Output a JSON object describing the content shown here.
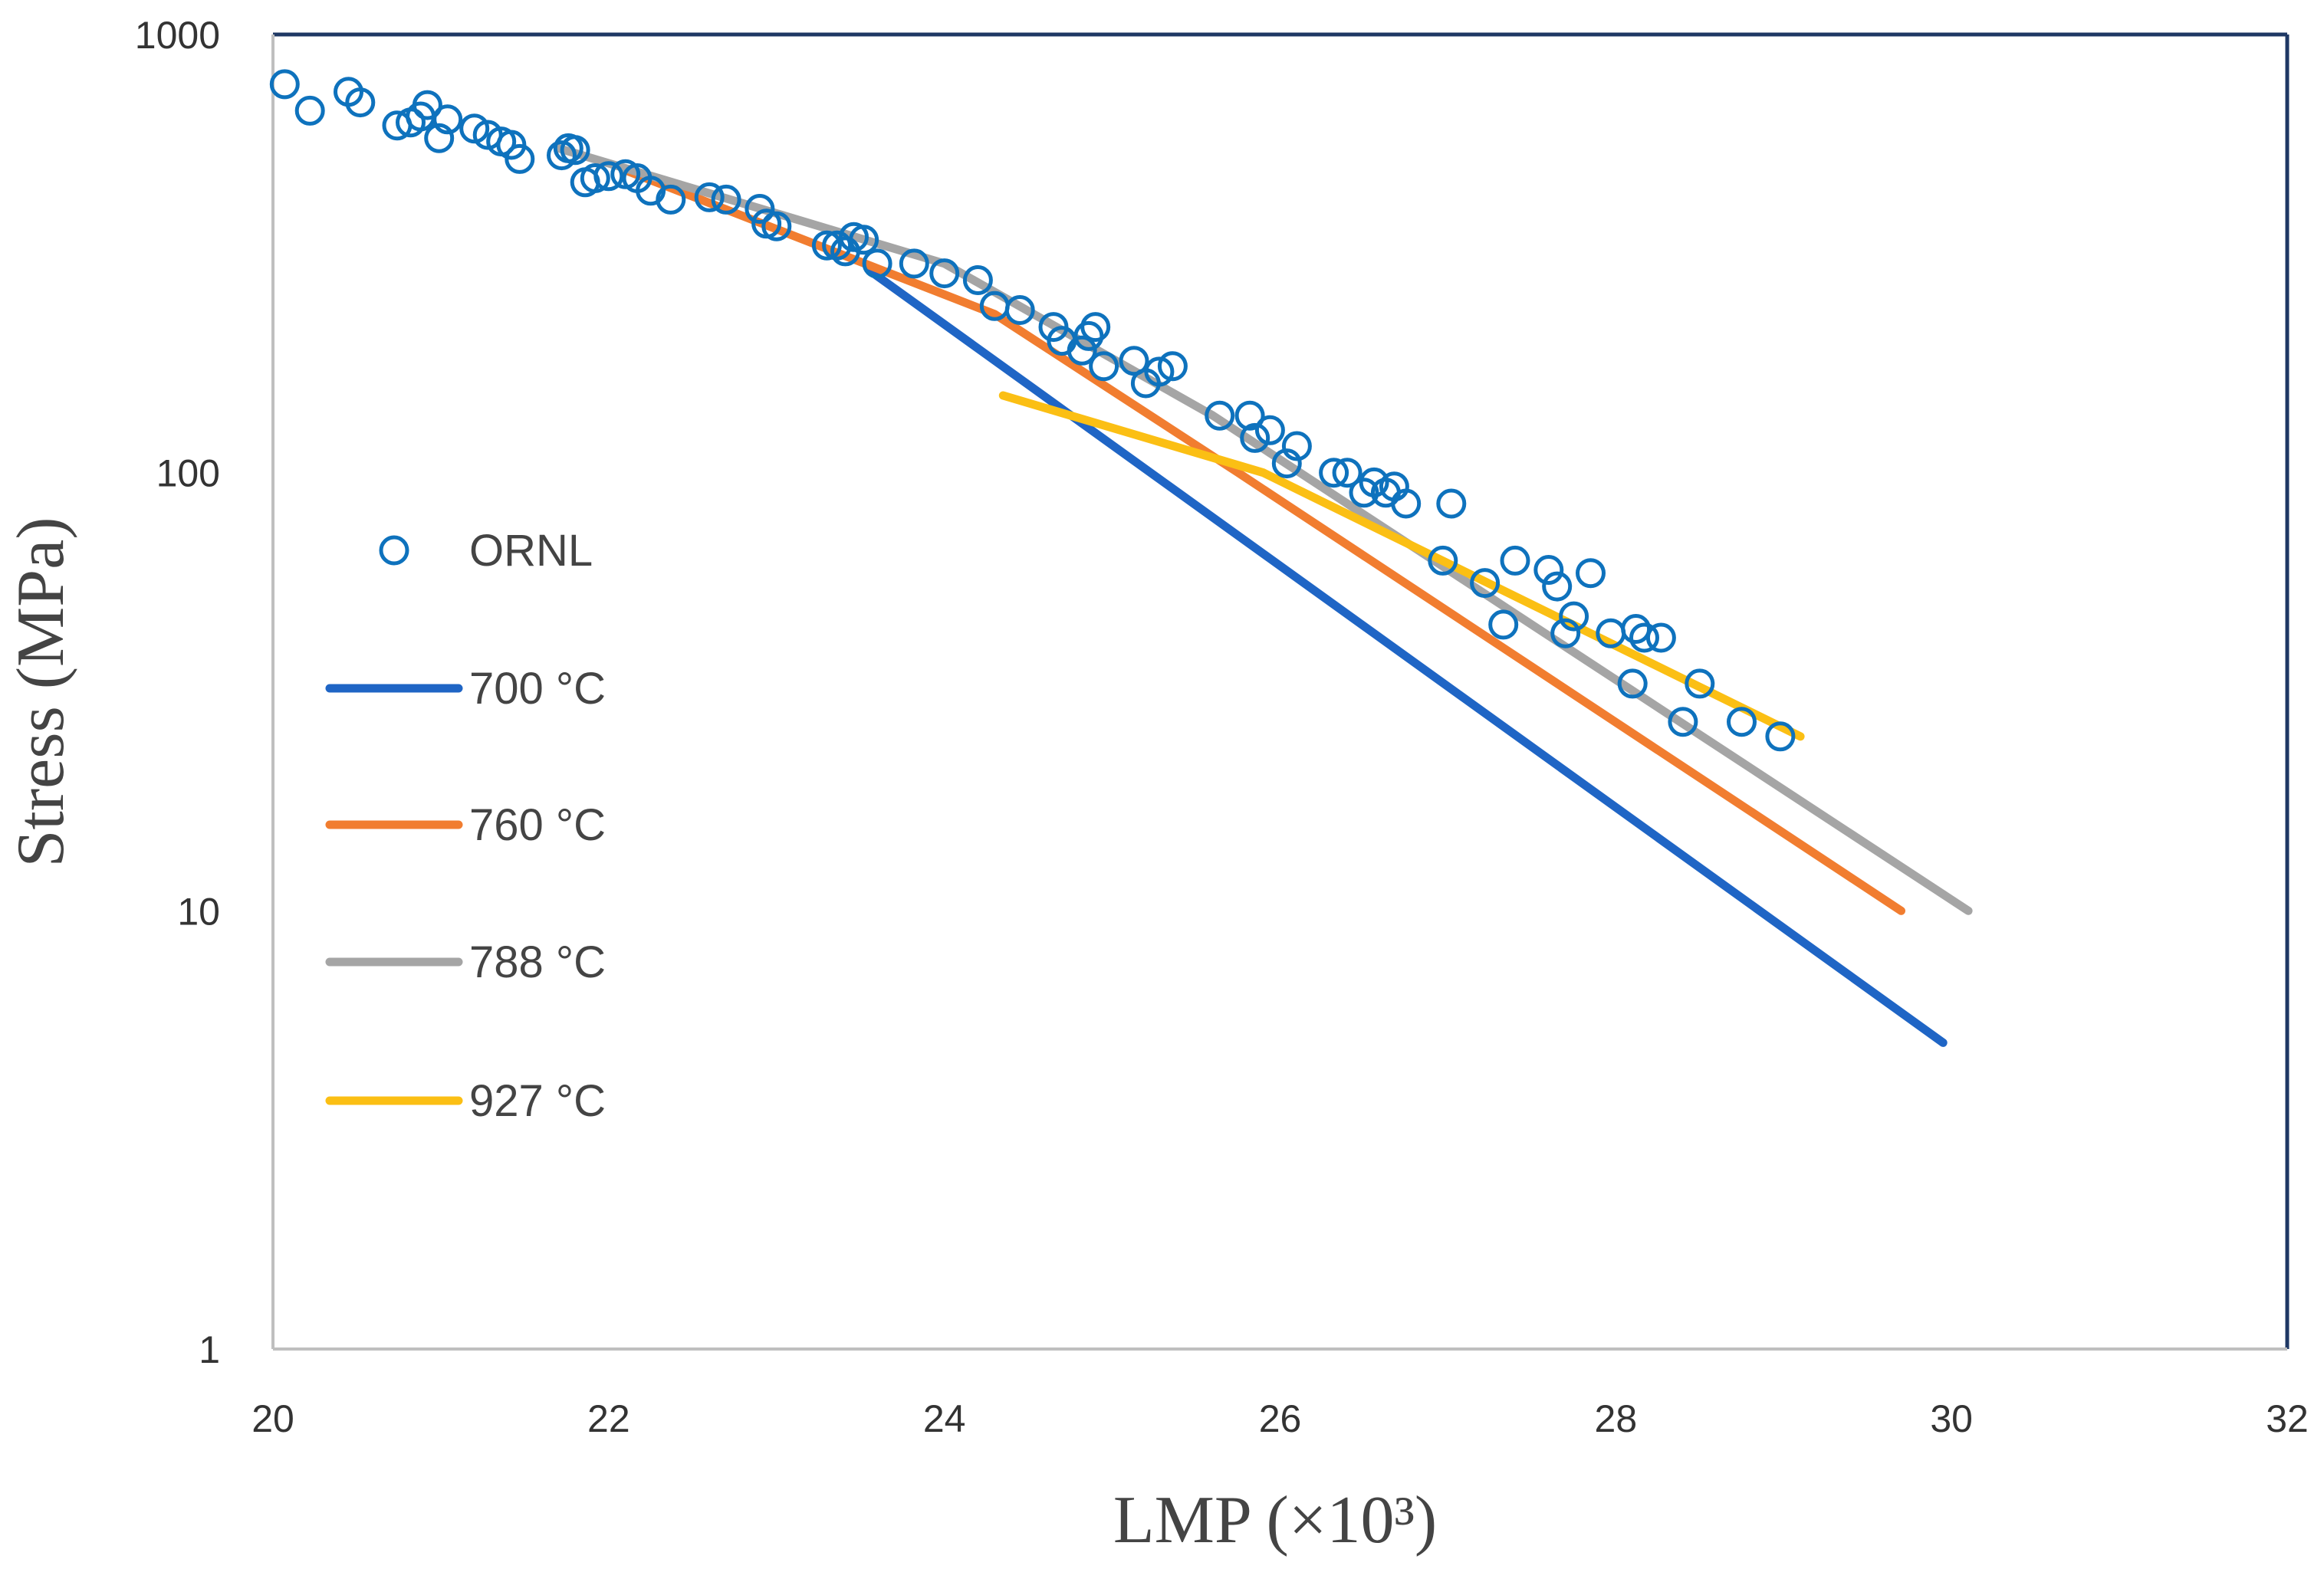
{
  "chart_data": {
    "type": "scatter",
    "xlabel": "LMP (×10³)",
    "ylabel": "Stress (MPa)",
    "xlim": [
      20,
      32
    ],
    "ylim": [
      1,
      1000
    ],
    "yscale": "log",
    "x_ticks": [
      "20",
      "22",
      "24",
      "26",
      "28",
      "30",
      "32"
    ],
    "y_ticks": [
      "1",
      "10",
      "100",
      "1000"
    ],
    "legend_position": "left",
    "series": [
      {
        "name": "ORNL",
        "kind": "marker",
        "marker": "open-circle",
        "color": "#0e72bd",
        "points": [
          [
            20.07,
            770
          ],
          [
            20.22,
            670
          ],
          [
            20.45,
            740
          ],
          [
            20.52,
            700
          ],
          [
            20.74,
            620
          ],
          [
            20.82,
            630
          ],
          [
            20.88,
            650
          ],
          [
            20.92,
            690
          ],
          [
            20.99,
            580
          ],
          [
            21.04,
            640
          ],
          [
            21.2,
            610
          ],
          [
            21.28,
            590
          ],
          [
            21.36,
            570
          ],
          [
            21.42,
            560
          ],
          [
            21.47,
            520
          ],
          [
            21.72,
            530
          ],
          [
            21.76,
            550
          ],
          [
            21.8,
            545
          ],
          [
            21.86,
            460
          ],
          [
            21.92,
            470
          ],
          [
            22.0,
            475
          ],
          [
            22.1,
            480
          ],
          [
            22.17,
            470
          ],
          [
            22.25,
            440
          ],
          [
            22.37,
            420
          ],
          [
            22.6,
            425
          ],
          [
            22.7,
            420
          ],
          [
            22.9,
            400
          ],
          [
            22.94,
            370
          ],
          [
            23.0,
            365
          ],
          [
            23.3,
            330
          ],
          [
            23.36,
            330
          ],
          [
            23.41,
            320
          ],
          [
            23.46,
            345
          ],
          [
            23.52,
            340
          ],
          [
            23.6,
            300
          ],
          [
            23.82,
            300
          ],
          [
            24.0,
            285
          ],
          [
            24.2,
            275
          ],
          [
            24.3,
            240
          ],
          [
            24.45,
            235
          ],
          [
            24.65,
            215
          ],
          [
            24.7,
            200
          ],
          [
            24.82,
            190
          ],
          [
            24.86,
            205
          ],
          [
            24.9,
            215
          ],
          [
            24.95,
            175
          ],
          [
            25.13,
            180
          ],
          [
            25.2,
            160
          ],
          [
            25.28,
            170
          ],
          [
            25.36,
            175
          ],
          [
            25.64,
            135
          ],
          [
            25.82,
            135
          ],
          [
            25.85,
            120
          ],
          [
            25.94,
            125
          ],
          [
            26.04,
            105
          ],
          [
            26.1,
            115
          ],
          [
            26.32,
            100
          ],
          [
            26.4,
            100
          ],
          [
            26.5,
            90
          ],
          [
            26.56,
            95
          ],
          [
            26.63,
            90
          ],
          [
            26.68,
            93
          ],
          [
            26.75,
            85
          ],
          [
            26.97,
            63
          ],
          [
            27.02,
            85
          ],
          [
            27.22,
            56
          ],
          [
            27.33,
            45
          ],
          [
            27.4,
            63
          ],
          [
            27.6,
            60
          ],
          [
            27.65,
            55
          ],
          [
            27.7,
            43
          ],
          [
            27.75,
            47
          ],
          [
            27.85,
            59
          ],
          [
            27.97,
            43
          ],
          [
            28.1,
            33
          ],
          [
            28.12,
            44
          ],
          [
            28.17,
            42
          ],
          [
            28.27,
            42
          ],
          [
            28.4,
            27
          ],
          [
            28.5,
            33
          ],
          [
            28.75,
            27
          ],
          [
            28.98,
            25
          ]
        ]
      },
      {
        "name": "700 °C",
        "kind": "line",
        "color": "#1f65c5",
        "points": [
          [
            23.55,
            290
          ],
          [
            29.95,
            5
          ]
        ]
      },
      {
        "name": "760 °C",
        "kind": "line",
        "color": "#f17d30",
        "points": [
          [
            22.1,
            490
          ],
          [
            24.3,
            230
          ],
          [
            25.75,
            100
          ],
          [
            29.7,
            10
          ]
        ]
      },
      {
        "name": "788 °C",
        "kind": "line",
        "color": "#a5a5a5",
        "points": [
          [
            21.7,
            550
          ],
          [
            24.0,
            300
          ],
          [
            25.6,
            135
          ],
          [
            30.1,
            10
          ]
        ]
      },
      {
        "name": "927 °C",
        "kind": "line",
        "color": "#fbbf14",
        "points": [
          [
            24.35,
            150
          ],
          [
            25.9,
            100
          ],
          [
            29.1,
            25
          ]
        ]
      }
    ]
  }
}
